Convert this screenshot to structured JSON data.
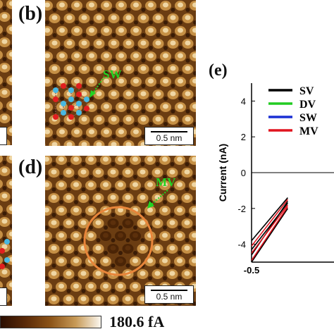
{
  "panels": {
    "b": {
      "label": "(b)",
      "defect_label": "SW",
      "scale_bar": "0.5 nm"
    },
    "d": {
      "label": "(d)",
      "defect_label": "MV",
      "scale_bar": "0.5 nm"
    },
    "e": {
      "label": "(e)"
    }
  },
  "colorbar": {
    "max_label": "180.6 fA"
  },
  "colors": {
    "defect_label": "#22d422",
    "circle": "#e8853a",
    "atom_cyan": "#49b8e0",
    "atom_red": "#e11f1f"
  },
  "chart_data": {
    "type": "line",
    "ylabel": "Current (nA)",
    "ylim": [
      -5,
      5
    ],
    "yticks": [
      -4,
      -2,
      0,
      2,
      4
    ],
    "xlim": [
      -0.5,
      0.6
    ],
    "xticks": [
      -0.5
    ],
    "legend": {
      "placement": "top-right",
      "entries": [
        "SV",
        "DV",
        "SW",
        "MV"
      ]
    },
    "series": [
      {
        "name": "SV",
        "color": "#000000",
        "lines": [
          [
            [
              -0.5,
              -3.8
            ],
            [
              0.0,
              -1.4
            ]
          ],
          [
            [
              -0.5,
              -4.6
            ],
            [
              0.0,
              -1.6
            ]
          ],
          [
            [
              -0.5,
              -4.3
            ],
            [
              0.0,
              -1.7
            ]
          ],
          [
            [
              -0.5,
              -5.0
            ],
            [
              0.0,
              -2.0
            ]
          ]
        ]
      },
      {
        "name": "DV",
        "color": "#22cc22",
        "lines": []
      },
      {
        "name": "SW",
        "color": "#1a2fd4",
        "lines": []
      },
      {
        "name": "MV",
        "color": "#e0141e",
        "lines": [
          [
            [
              -0.5,
              -4.1
            ],
            [
              0.0,
              -1.5
            ]
          ],
          [
            [
              -0.5,
              -4.9
            ],
            [
              0.0,
              -1.9
            ]
          ],
          [
            [
              -0.5,
              -4.5
            ],
            [
              0.0,
              -1.8
            ]
          ]
        ]
      }
    ]
  }
}
